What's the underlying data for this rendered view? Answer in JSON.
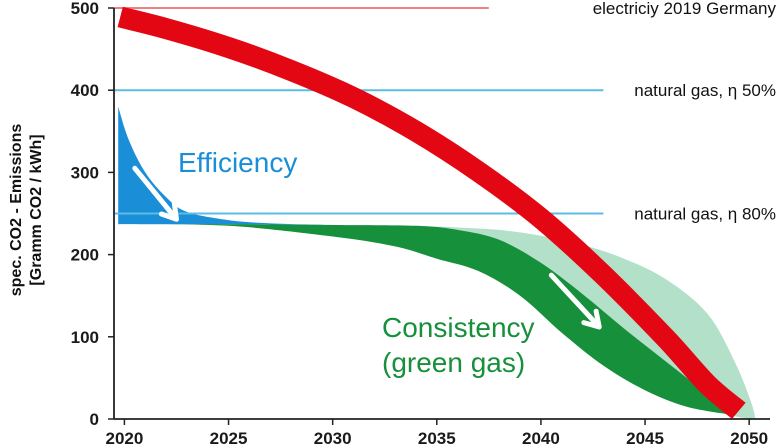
{
  "chart_data": {
    "type": "area",
    "ylabel_lines": [
      "spec. CO2 - Emissions",
      "[Gramm CO2 / kWh]"
    ],
    "xlim": [
      2019.5,
      2051
    ],
    "ylim": [
      0,
      500
    ],
    "x_ticks": [
      2020,
      2025,
      2030,
      2035,
      2040,
      2045,
      2050
    ],
    "y_ticks": [
      0,
      100,
      200,
      300,
      400,
      500
    ],
    "reference_lines": [
      {
        "label": "electriciy 2019 Germany",
        "y": 500,
        "color": "#f08080",
        "x_end": 2037.5
      },
      {
        "label": "natural gas, η 50%",
        "y": 400,
        "color": "#5bbde6",
        "x_end": 2043
      },
      {
        "label": "natural gas, η 80%",
        "y": 250,
        "color": "#5bbde6",
        "x_end": 2043
      }
    ],
    "series": [
      {
        "name": "Efficiency",
        "color": "#1a8fd8",
        "upper": [
          [
            2019.7,
            380
          ],
          [
            2020.2,
            340
          ],
          [
            2021,
            300
          ],
          [
            2022,
            270
          ],
          [
            2023,
            252
          ],
          [
            2025,
            242
          ],
          [
            2027,
            238
          ],
          [
            2030,
            236
          ],
          [
            2032,
            235
          ]
        ],
        "lower": [
          [
            2019.7,
            237
          ],
          [
            2025,
            237
          ],
          [
            2032,
            235
          ]
        ]
      },
      {
        "name": "Consistency (green gas)",
        "color": "#17903c",
        "upper": [
          [
            2019.7,
            237
          ],
          [
            2025,
            237
          ],
          [
            2030,
            236
          ],
          [
            2034,
            235
          ],
          [
            2036,
            230
          ],
          [
            2038,
            218
          ],
          [
            2040,
            190
          ],
          [
            2042,
            152
          ],
          [
            2044,
            110
          ],
          [
            2046,
            70
          ],
          [
            2048,
            30
          ],
          [
            2049.2,
            5
          ]
        ],
        "lower": [
          [
            2019.7,
            237
          ],
          [
            2025,
            235
          ],
          [
            2030,
            222
          ],
          [
            2033,
            210
          ],
          [
            2035,
            195
          ],
          [
            2037,
            180
          ],
          [
            2039,
            150
          ],
          [
            2041,
            105
          ],
          [
            2043,
            65
          ],
          [
            2045,
            35
          ],
          [
            2047,
            15
          ],
          [
            2049.2,
            5
          ]
        ]
      },
      {
        "name": "Consistency range",
        "color": "#b3e0c8",
        "upper": [
          [
            2034,
            235
          ],
          [
            2036,
            233
          ],
          [
            2038,
            230
          ],
          [
            2040,
            223
          ],
          [
            2042,
            212
          ],
          [
            2044,
            195
          ],
          [
            2046,
            170
          ],
          [
            2048,
            128
          ],
          [
            2049.3,
            70
          ],
          [
            2050.1,
            20
          ],
          [
            2050.3,
            0
          ]
        ],
        "lower": [
          [
            2034,
            235
          ],
          [
            2036,
            230
          ],
          [
            2038,
            218
          ],
          [
            2040,
            190
          ],
          [
            2042,
            152
          ],
          [
            2044,
            110
          ],
          [
            2046,
            70
          ],
          [
            2048,
            30
          ],
          [
            2049.2,
            5
          ],
          [
            2050.3,
            0
          ]
        ]
      },
      {
        "name": "electricity",
        "color": "#e30613",
        "points": [
          [
            2019.8,
            489
          ],
          [
            2022,
            475
          ],
          [
            2025,
            452
          ],
          [
            2028,
            424
          ],
          [
            2031,
            391
          ],
          [
            2034,
            350
          ],
          [
            2037,
            301
          ],
          [
            2040,
            244
          ],
          [
            2043,
            175
          ],
          [
            2046,
            98
          ],
          [
            2048,
            42
          ],
          [
            2049.5,
            10
          ]
        ]
      }
    ],
    "annotations": [
      {
        "label": "Efficiency",
        "color": "#1a8fd8"
      },
      {
        "label": "Consistency",
        "color": "#17903c"
      },
      {
        "label": "(green gas)",
        "color": "#17903c"
      }
    ],
    "arrows": [
      {
        "from": [
          2020.5,
          305
        ],
        "to": [
          2022.5,
          243
        ],
        "color": "#ffffff"
      },
      {
        "from": [
          2040.5,
          175
        ],
        "to": [
          2042.8,
          112
        ],
        "color": "#ffffff"
      }
    ],
    "grid": false
  }
}
